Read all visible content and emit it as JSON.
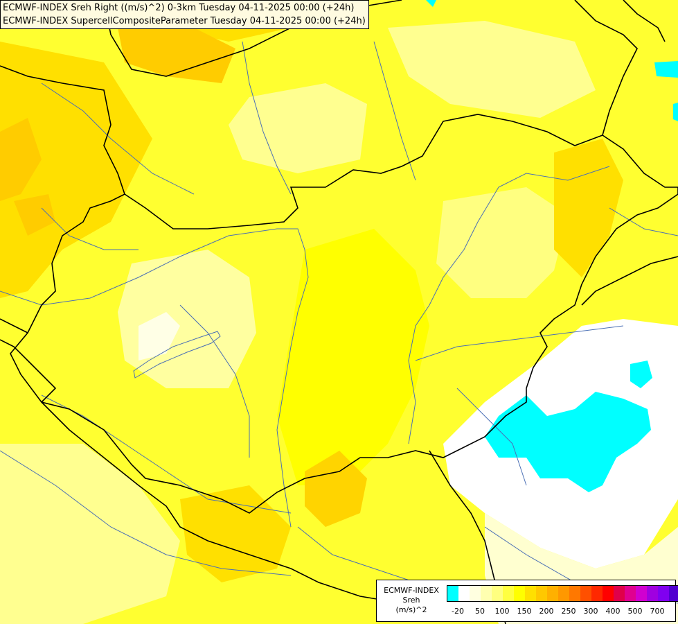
{
  "title_lines": [
    "ECMWF-INDEX Sreh Right ((m/s)^2) 0-3km Tuesday 04-11-2025 00:00 (+24h)",
    "ECMWF-INDEX SupercellCompositeParameter Tuesday 04-11-2025 00:00 (+24h)"
  ],
  "legend": {
    "title_lines": [
      "ECMWF-INDEX",
      "Sreh",
      "(m/s)^2"
    ],
    "colors": [
      "#00ffff",
      "#ffffff",
      "#ffffe0",
      "#ffffb0",
      "#ffff80",
      "#ffff40",
      "#ffff00",
      "#ffe000",
      "#ffc800",
      "#ffb000",
      "#ff9800",
      "#ff7800",
      "#ff5000",
      "#ff2800",
      "#ff0000",
      "#e0004a",
      "#e00090",
      "#d000d0",
      "#a000e0",
      "#8000f0",
      "#5000d0",
      "#2000b0",
      "#000080"
    ],
    "tick_labels": [
      "-20",
      "50",
      "100",
      "150",
      "200",
      "250",
      "300",
      "400",
      "500",
      "700"
    ]
  },
  "colors": {
    "bg_yellow": "#ffff00",
    "light_yellow": "#ffff7a",
    "pale_yellow": "#ffffb0",
    "orange_yellow": "#ffd000",
    "gold": "#ffe000",
    "cyan": "#00ffff",
    "white": "#ffffff",
    "border": "#000000",
    "river": "#4a6fb5"
  }
}
